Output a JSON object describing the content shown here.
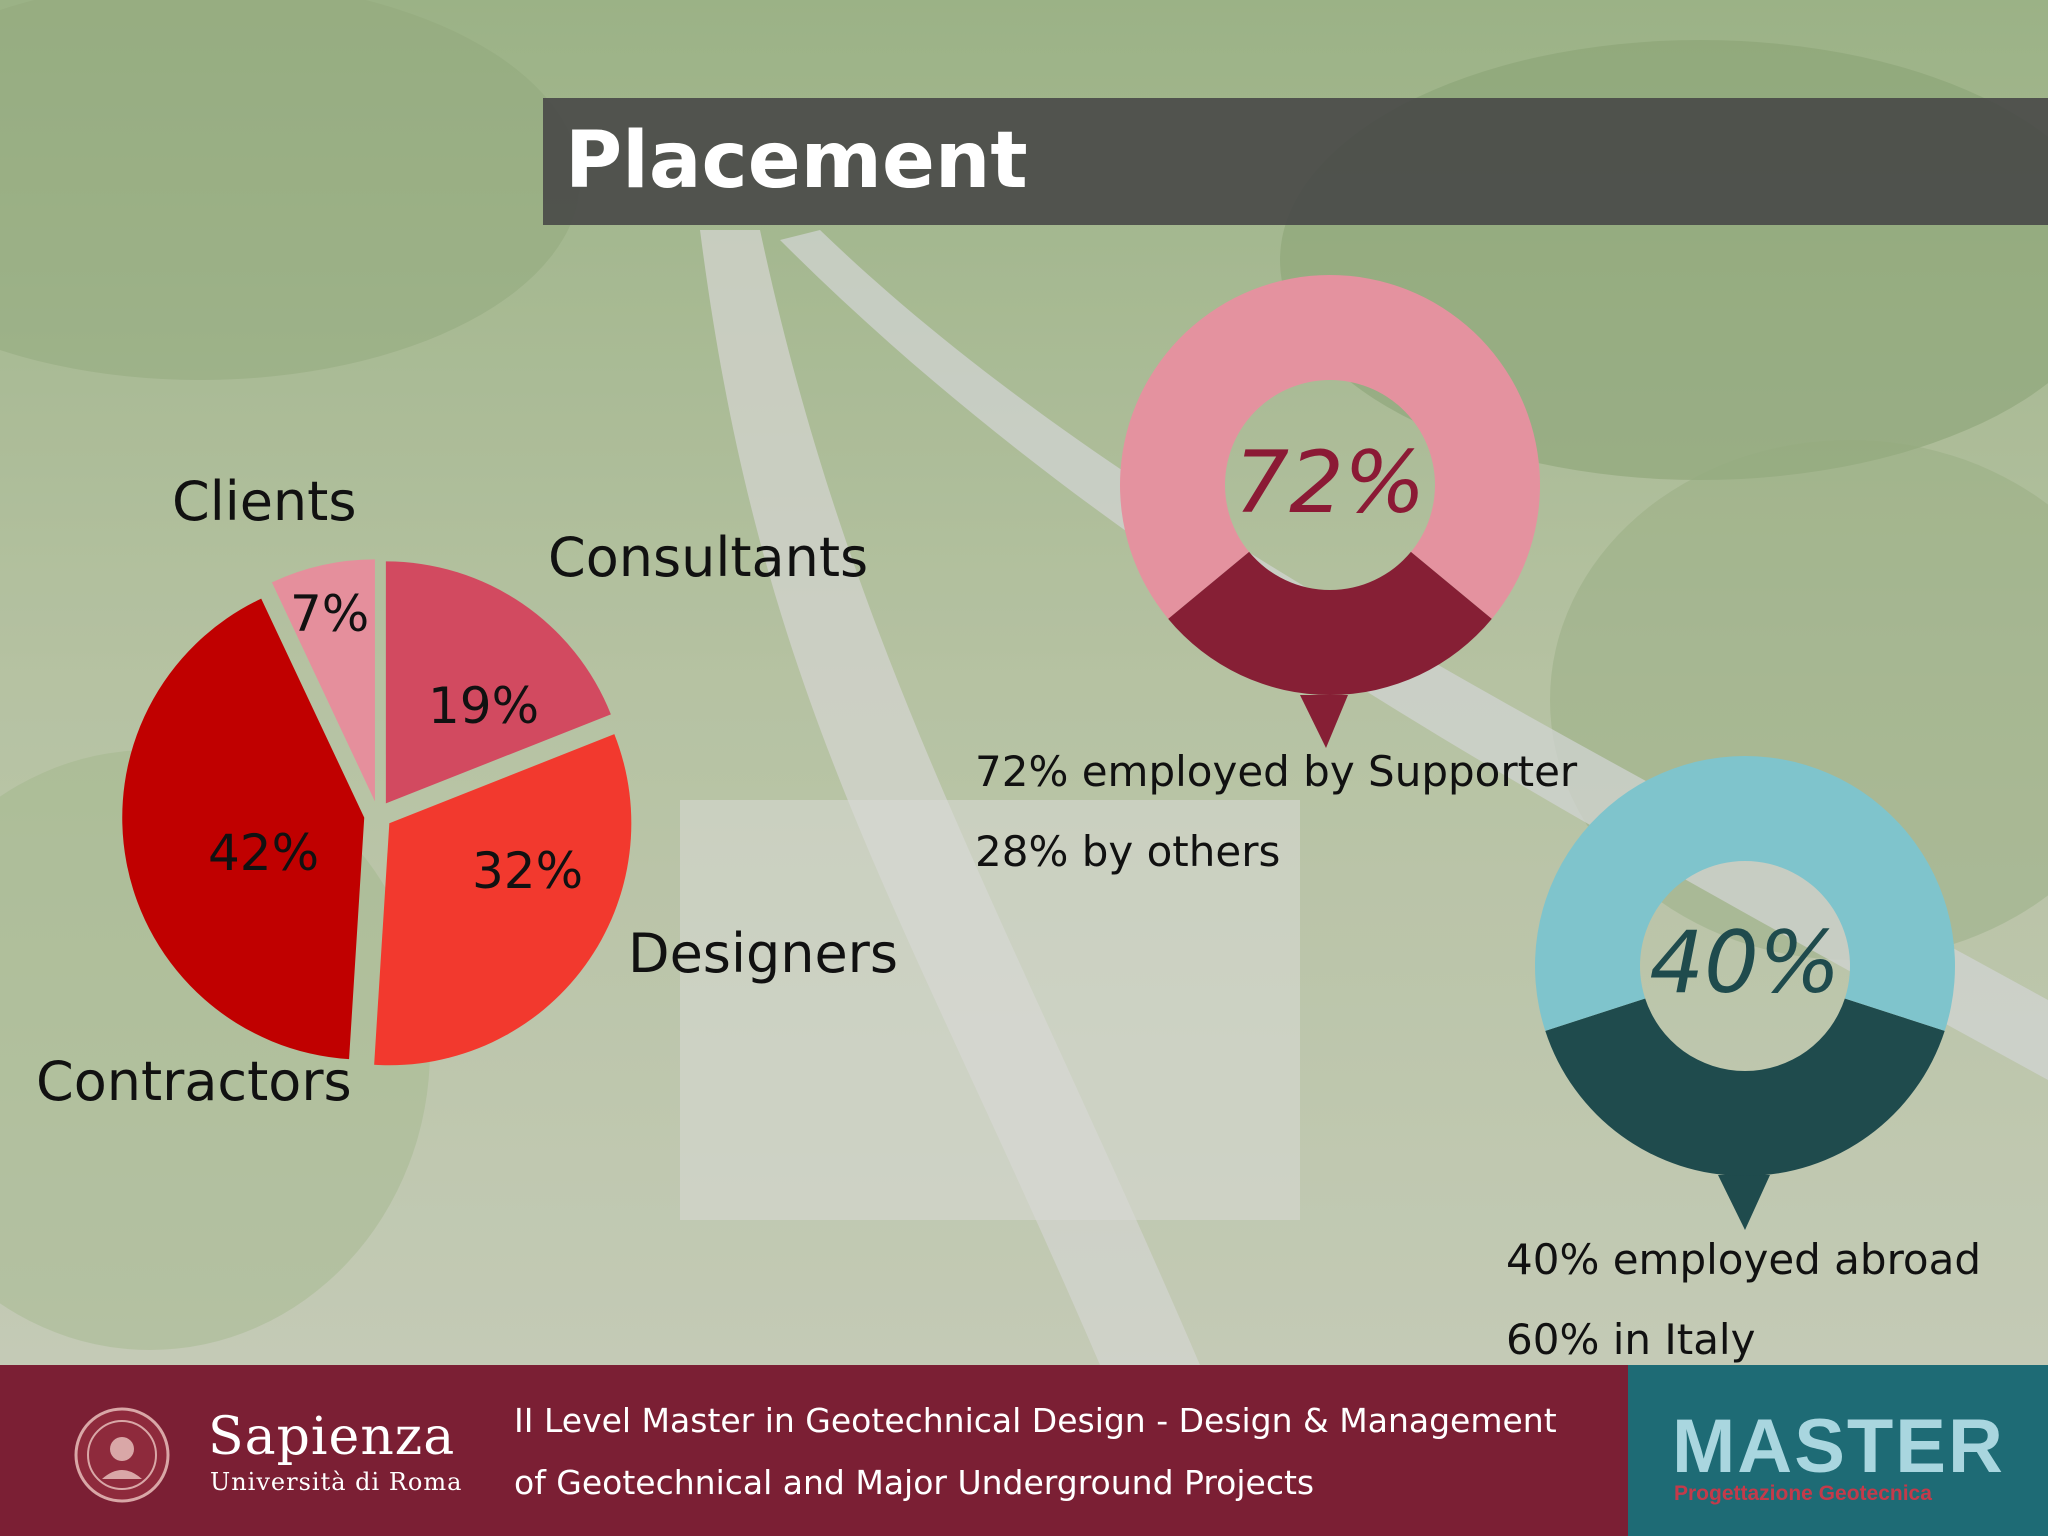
{
  "slide": {
    "title": "Placement",
    "captions": {
      "supporter_line1": "72% employed by Supporter",
      "supporter_line2": "28% by others",
      "abroad_line1": "40% employed abroad",
      "abroad_line2": "60% in Italy"
    }
  },
  "footer": {
    "university_name": "Sapienza",
    "university_sub": "Università di Roma",
    "description_line1": "II Level Master in Geotechnical Design - Design & Management",
    "description_line2": "of Geotechnical and Major Underground Projects",
    "logo_main": "MASTER",
    "logo_sub": "Progettazione Geotecnica"
  },
  "colors": {
    "title_bar": "#464646",
    "footer": "#7b1f34",
    "footer_logo_box": "#1e6b75"
  },
  "chart_data": [
    {
      "type": "pie",
      "exploded": true,
      "slices": [
        {
          "label": "Consultants",
          "value": 19,
          "value_label": "19%",
          "color": "#d24a60"
        },
        {
          "label": "Designers",
          "value": 32,
          "value_label": "32%",
          "color": "#f2392e"
        },
        {
          "label": "Contractors",
          "value": 42,
          "value_label": "42%",
          "color": "#c00000"
        },
        {
          "label": "Clients",
          "value": 7,
          "value_label": "7%",
          "color": "#e58f9c"
        }
      ]
    },
    {
      "type": "pie",
      "style": "donut",
      "center_label": "72%",
      "label_color": "#8b1a35",
      "slices": [
        {
          "label": "employed by Supporter",
          "value": 72,
          "color": "#e4929f"
        },
        {
          "label": "by others",
          "value": 28,
          "color": "#861f35"
        }
      ]
    },
    {
      "type": "pie",
      "style": "donut",
      "center_label": "40%",
      "label_color": "#1f4b4d",
      "slices": [
        {
          "label": "employed abroad",
          "value": 40,
          "color": "#1f4b4d"
        },
        {
          "label": "in Italy",
          "value": 60,
          "color": "#7fc4cc"
        }
      ]
    }
  ]
}
